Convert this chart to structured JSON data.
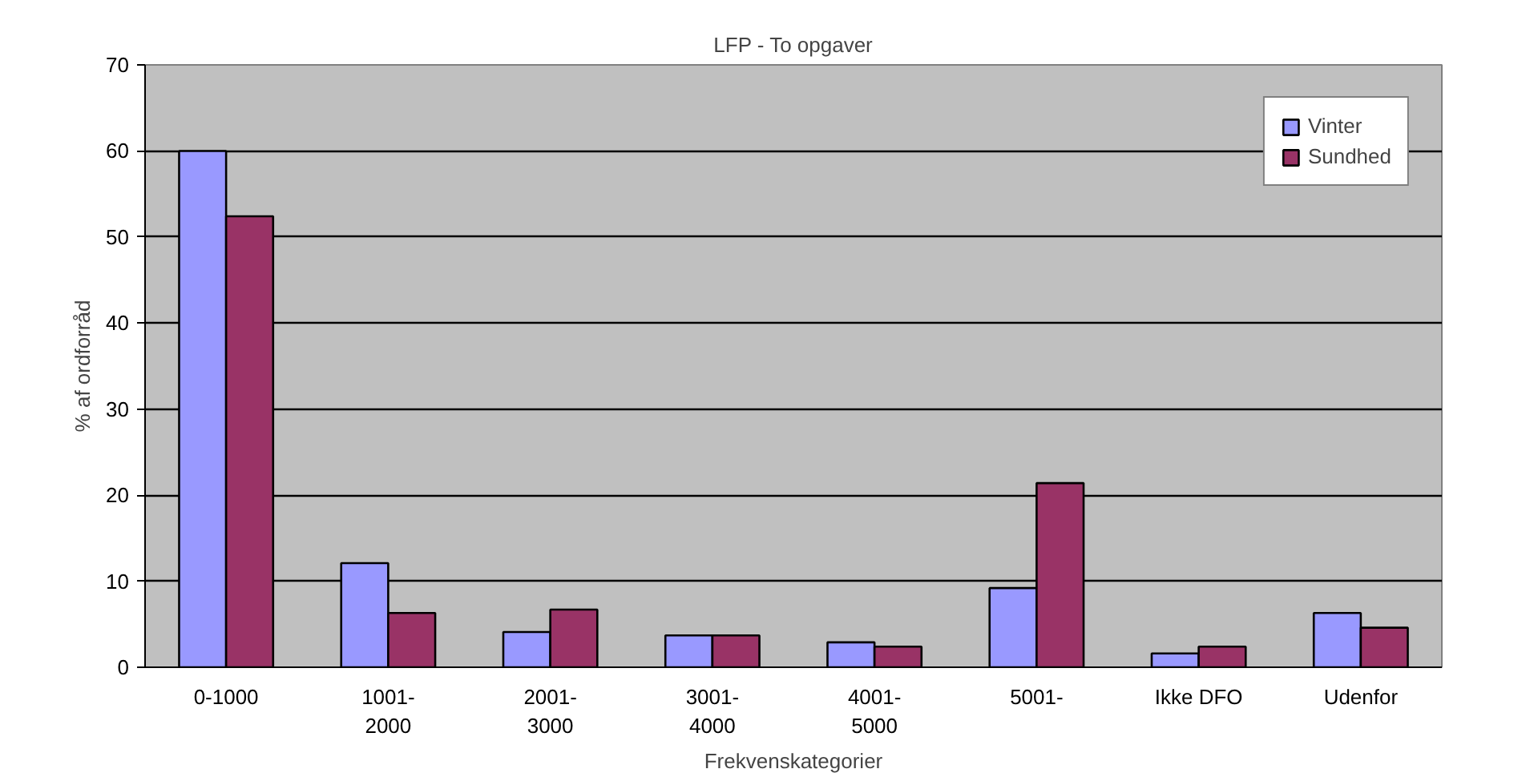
{
  "chart_data": {
    "type": "bar",
    "title": "LFP - To opgaver",
    "xlabel": "Frekvenskategorier",
    "ylabel": "% af ordforråd",
    "categories": [
      "0-1000",
      "1001-\n2000",
      "2001-\n3000",
      "3001-\n4000",
      "4001-\n5000",
      "5001-",
      "Ikke DFO",
      "Udenfor"
    ],
    "series": [
      {
        "name": "Vinter",
        "color": "#9999ff",
        "values": [
          60,
          12.1,
          4.1,
          3.7,
          2.9,
          9.2,
          1.6,
          6.3
        ]
      },
      {
        "name": "Sundhed",
        "color": "#993366",
        "values": [
          52.4,
          6.3,
          6.7,
          3.7,
          2.4,
          21.4,
          2.4,
          4.6
        ]
      }
    ],
    "ylim": [
      0,
      70
    ],
    "yticks": [
      0,
      10,
      20,
      30,
      40,
      50,
      60,
      70
    ],
    "grid": "y",
    "legend": "top right"
  }
}
